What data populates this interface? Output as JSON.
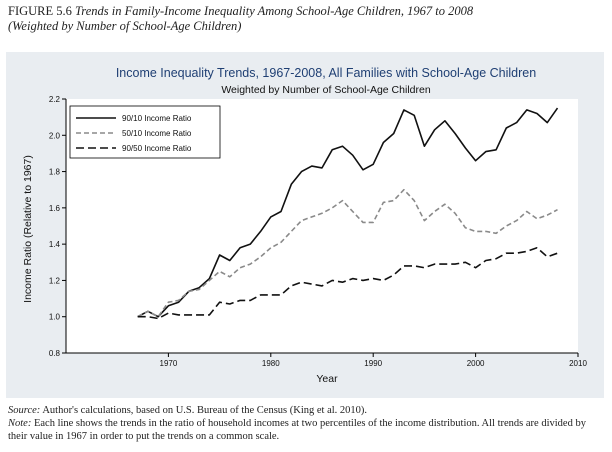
{
  "figure": {
    "number": "FIGURE 5.6",
    "title": "Trends in Family-Income Inequality Among School-Age Children, 1967 to 2008",
    "subtitle": "(Weighted by Number of School-Age Children)"
  },
  "footer": {
    "source_label": "Source:",
    "source_text": "Author's calculations, based on U.S. Bureau of the Census (King et al. 2010).",
    "note_label": "Note:",
    "note_text": "Each line shows the trends in the ratio of household incomes at two percentiles of the income distribution. All trends are divided by their value in 1967 in order to put the trends on a common scale."
  },
  "chart_data": {
    "type": "line",
    "title": "Income Inequality Trends, 1967-2008, All Families with School-Age Children",
    "subtitle": "Weighted by Number of School-Age Children",
    "xlabel": "Year",
    "ylabel": "Income Ratio (Relative to 1967)",
    "xlim": [
      1960,
      2010
    ],
    "ylim": [
      0.8,
      2.2
    ],
    "x_ticks": [
      1970,
      1980,
      1990,
      2000,
      2010
    ],
    "y_ticks": [
      "0.8",
      "1.0",
      "1.2",
      "1.4",
      "1.6",
      "1.8",
      "2.0",
      "2.2"
    ],
    "grid": false,
    "legend_position": "top-left",
    "x": [
      1967,
      1968,
      1969,
      1970,
      1971,
      1972,
      1973,
      1974,
      1975,
      1976,
      1977,
      1978,
      1979,
      1980,
      1981,
      1982,
      1983,
      1984,
      1985,
      1986,
      1987,
      1988,
      1989,
      1990,
      1991,
      1992,
      1993,
      1994,
      1995,
      1996,
      1997,
      1998,
      1999,
      2000,
      2001,
      2002,
      2003,
      2004,
      2005,
      2006,
      2007,
      2008
    ],
    "series": [
      {
        "name": "90/10 Income Ratio",
        "style": "solid",
        "color": "#111111",
        "values": [
          1.0,
          1.03,
          1.0,
          1.06,
          1.08,
          1.14,
          1.16,
          1.21,
          1.34,
          1.31,
          1.38,
          1.4,
          1.47,
          1.55,
          1.58,
          1.73,
          1.8,
          1.83,
          1.82,
          1.92,
          1.94,
          1.89,
          1.81,
          1.84,
          1.96,
          2.01,
          2.14,
          2.11,
          1.94,
          2.03,
          2.08,
          2.01,
          1.93,
          1.86,
          1.91,
          1.92,
          2.04,
          2.07,
          2.14,
          2.12,
          2.07,
          2.15
        ]
      },
      {
        "name": "50/10 Income Ratio",
        "style": "dash",
        "color": "#8a8a8a",
        "values": [
          1.0,
          1.03,
          1.0,
          1.08,
          1.09,
          1.14,
          1.15,
          1.2,
          1.25,
          1.22,
          1.27,
          1.29,
          1.33,
          1.38,
          1.41,
          1.47,
          1.53,
          1.55,
          1.57,
          1.6,
          1.64,
          1.58,
          1.52,
          1.52,
          1.63,
          1.64,
          1.7,
          1.64,
          1.53,
          1.58,
          1.62,
          1.57,
          1.49,
          1.47,
          1.47,
          1.46,
          1.5,
          1.53,
          1.58,
          1.54,
          1.56,
          1.59
        ]
      },
      {
        "name": "90/50 Income Ratio",
        "style": "longdash",
        "color": "#111111",
        "values": [
          1.0,
          1.0,
          0.99,
          1.02,
          1.01,
          1.01,
          1.01,
          1.01,
          1.08,
          1.07,
          1.09,
          1.09,
          1.12,
          1.12,
          1.12,
          1.17,
          1.19,
          1.18,
          1.17,
          1.2,
          1.19,
          1.21,
          1.2,
          1.21,
          1.2,
          1.23,
          1.28,
          1.28,
          1.27,
          1.29,
          1.29,
          1.29,
          1.3,
          1.27,
          1.31,
          1.32,
          1.35,
          1.35,
          1.36,
          1.38,
          1.33,
          1.35
        ]
      }
    ]
  }
}
